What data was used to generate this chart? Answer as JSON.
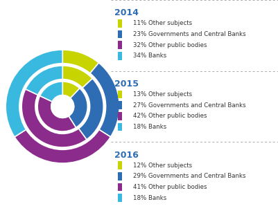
{
  "years": [
    "2014",
    "2015",
    "2016"
  ],
  "categories": [
    "Other subjects",
    "Governments and Central Banks",
    "Other public bodies",
    "Banks"
  ],
  "colors": [
    "#c8d400",
    "#2e6db4",
    "#8b2b8b",
    "#39b8e0"
  ],
  "data": {
    "2014": [
      11,
      23,
      32,
      34
    ],
    "2015": [
      13,
      27,
      42,
      18
    ],
    "2016": [
      12,
      29,
      41,
      18
    ]
  },
  "legend": {
    "2014": [
      "11% Other subjects",
      "23% Governments and Central Banks",
      "32% Other public bodies",
      "34% Banks"
    ],
    "2015": [
      "13% Other subjects",
      "27% Governments and Central Banks",
      "42% Other public bodies",
      "18% Banks"
    ],
    "2016": [
      "12% Other subjects",
      "29% Governments and Central Banks",
      "41% Other public bodies",
      "18% Banks"
    ]
  },
  "bg_color": "#ffffff",
  "year_title_color": "#2e6db4",
  "text_color": "#333333",
  "start_angle": 90,
  "ring_outer_radii": [
    1.0,
    0.72,
    0.44
  ],
  "ring_inner_radii": [
    0.76,
    0.48,
    0.2
  ],
  "center_hole_r": 0.2
}
